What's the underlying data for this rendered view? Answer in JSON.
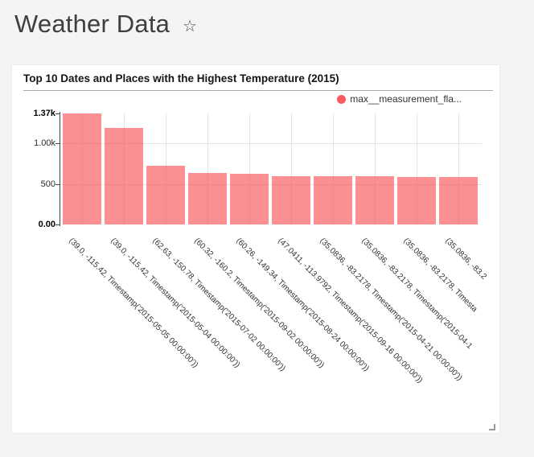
{
  "header": {
    "title": "Weather Data",
    "star_icon": "☆"
  },
  "card": {
    "title": "Top 10 Dates and Places with the Highest Temperature (2015)",
    "legend": {
      "label": "max__measurement_fla...",
      "color": "#fb5a5f"
    }
  },
  "chart_data": {
    "type": "bar",
    "title": "Top 10 Dates and Places with the Highest Temperature (2015)",
    "legend": [
      "max__measurement_fla..."
    ],
    "legend_position": "top-right",
    "grid": true,
    "series_color": "#fb5a5f",
    "bar_fill": "rgba(250,90,95,0.68)",
    "ylim": [
      0,
      1370
    ],
    "yticks": [
      {
        "label": "1.37k",
        "value": 1370,
        "bold": true
      },
      {
        "label": "1.00k",
        "value": 1000,
        "bold": false
      },
      {
        "label": "500",
        "value": 500,
        "bold": false
      },
      {
        "label": "0.00",
        "value": 0,
        "bold": true
      }
    ],
    "categories": [
      "(39.0, -115.42, Timestamp('2015-05-05 00:00:00'))",
      "(39.0, -115.42, Timestamp('2015-05-04 00:00:00'))",
      "(62.63, -150.78, Timestamp('2015-07-02 00:00:00'))",
      "(60.32, -160.2, Timestamp('2015-09-02 00:00:00'))",
      "(60.26, -149.34, Timestamp('2015-08-24 00:00:00'))",
      "(47.0411, -113.9792, Timestamp('2015-09-16 00:00:00'))",
      "(35.0836, -83.2178, Timestamp('2015-04-21 00:00:00'))",
      "(35.0836, -83.2178, Timestamp('2015-04-1",
      "(35.0836, -83.2178, Timesta",
      "(35.0836, -83.2"
    ],
    "values": [
      1370,
      1195,
      725,
      640,
      628,
      596,
      593,
      591,
      589,
      583
    ],
    "xlabel": "",
    "ylabel": ""
  }
}
